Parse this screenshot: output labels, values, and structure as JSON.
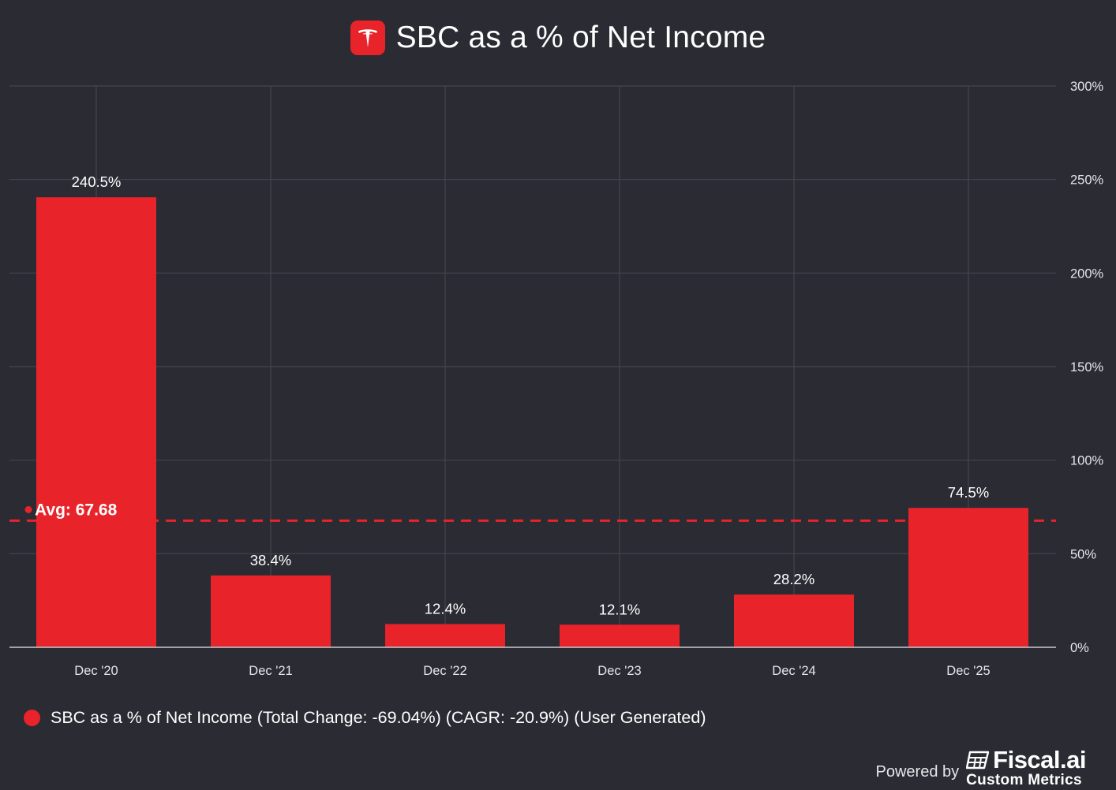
{
  "title": "SBC as a % of Net Income",
  "logo": {
    "icon": "tesla-logo-icon",
    "color": "#e8232a"
  },
  "chart_data": {
    "type": "bar",
    "title": "SBC as a % of Net Income",
    "categories": [
      "Dec '20",
      "Dec '21",
      "Dec '22",
      "Dec '23",
      "Dec '24",
      "Dec '25"
    ],
    "values": [
      240.5,
      38.4,
      12.4,
      12.1,
      28.2,
      74.5
    ],
    "value_labels": [
      "240.5%",
      "38.4%",
      "12.4%",
      "12.1%",
      "28.2%",
      "74.5%"
    ],
    "ylim": [
      0,
      300
    ],
    "yticks": [
      0,
      50,
      100,
      150,
      200,
      250,
      300
    ],
    "ytick_labels": [
      "0%",
      "50%",
      "100%",
      "150%",
      "200%",
      "250%",
      "300%"
    ],
    "y_axis_side": "right",
    "grid": true,
    "average": {
      "value": 67.68,
      "label": "Avg: 67.68"
    },
    "series_color": "#e8232a",
    "xlabel": "",
    "ylabel": ""
  },
  "legend": {
    "label": "SBC as a % of Net Income (Total Change: -69.04%) (CAGR: -20.9%) (User Generated)",
    "color": "#e8232a"
  },
  "footer": {
    "powered_by": "Powered by",
    "brand": "Fiscal.ai",
    "sub": "Custom Metrics",
    "brand_icon": "fiscal-ai-logo-icon"
  },
  "colors": {
    "background": "#2a2b33",
    "grid": "#44454e",
    "axis_text": "#e6e6ea",
    "accent": "#e8232a"
  }
}
